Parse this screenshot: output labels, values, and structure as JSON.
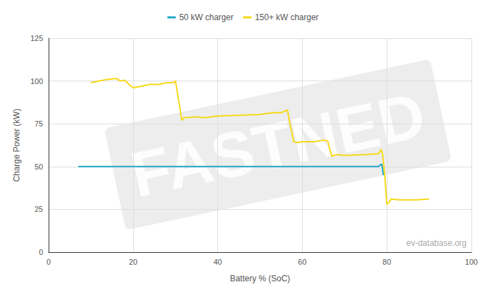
{
  "chart_data": {
    "type": "line",
    "x_label": "Battery % (SoC)",
    "y_label": "Charge Power (kW)",
    "annotations": [
      "FASTNED",
      "ev-database.org"
    ],
    "series": [
      {
        "name": "50 kW charger",
        "color": "#1ea6c6",
        "x": [
          7,
          20,
          40,
          60,
          78,
          78.5,
          78.8,
          79.2
        ],
        "values": [
          50,
          50,
          50,
          50,
          50,
          51,
          51.5,
          45
        ]
      },
      {
        "name": "150+ kW charger",
        "color": "#f6d817",
        "x": [
          10,
          12,
          14,
          16,
          17,
          18,
          19,
          20,
          22,
          24,
          26,
          28,
          29.5,
          30,
          31,
          31.5,
          32,
          35,
          37,
          40,
          45,
          50,
          53,
          55,
          56.5,
          57,
          58,
          59,
          60,
          63,
          65,
          66,
          66.5,
          67,
          68,
          70,
          75,
          78,
          78.7,
          79,
          79.5,
          80,
          80.5,
          81,
          83,
          87,
          90
        ],
        "values": [
          99,
          100,
          101,
          101.5,
          100,
          100.5,
          98,
          96,
          97,
          98,
          98,
          99,
          99,
          100,
          85,
          77,
          78.5,
          79,
          78.5,
          79.5,
          80,
          80.5,
          81.5,
          81.5,
          83,
          76,
          64.5,
          64,
          64.5,
          64.5,
          65.5,
          65,
          60,
          56,
          57,
          56.5,
          57,
          57.5,
          60,
          57,
          45,
          28,
          29,
          31,
          30.5,
          30.5,
          31
        ]
      }
    ],
    "xlim": [
      0,
      100
    ],
    "xticks": [
      0,
      20,
      40,
      60,
      80,
      100
    ],
    "ylim": [
      0,
      125
    ],
    "yticks": [
      0,
      25,
      50,
      75,
      100,
      125
    ],
    "grid": true,
    "legend": "top"
  }
}
